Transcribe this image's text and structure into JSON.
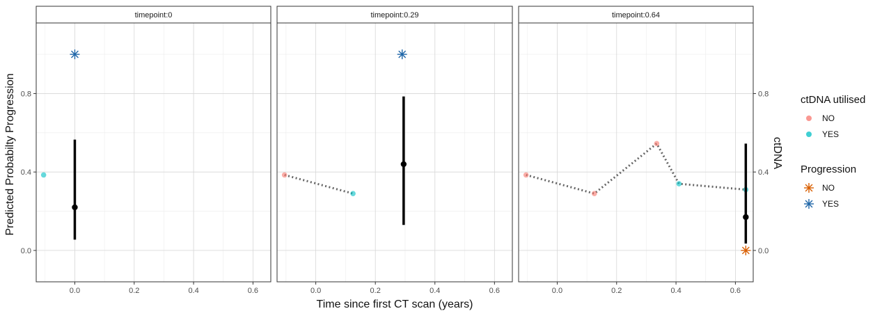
{
  "chart_data": {
    "type": "scatter",
    "xlabel": "Time since first CT scan (years)",
    "ylabel": "Predicted Probabilty Progression",
    "y2label": "ctDNA",
    "xlim": [
      -0.13,
      0.66
    ],
    "ylim": [
      -0.16,
      1.16
    ],
    "x_ticks": [
      0.0,
      0.2,
      0.4,
      0.6
    ],
    "x_tick_labels": [
      "0.0",
      "0.2",
      "0.4",
      "0.6"
    ],
    "y_ticks": [
      0.0,
      0.4,
      0.8
    ],
    "y_tick_labels": [
      "0.0",
      "0.4",
      "0.8"
    ],
    "grid": true,
    "colors": {
      "ctdna_no": "#F8766D",
      "ctdna_yes": "#00BFC4",
      "progression_no": "#D95F02",
      "progression_yes": "#1F66A8",
      "prediction": "#000000",
      "ctdna_line": "#666666"
    },
    "facets": [
      {
        "title": "timepoint:0",
        "ctdna_points": [
          {
            "x": -0.105,
            "y": 0.385,
            "utilised": "YES"
          }
        ],
        "prediction": {
          "x": 0.0,
          "y": 0.22,
          "ymin": 0.055,
          "ymax": 0.565
        },
        "progression_markers": [
          {
            "x": 0.0,
            "y": 1.0,
            "progression": "YES"
          }
        ]
      },
      {
        "title": "timepoint:0.29",
        "ctdna_points": [
          {
            "x": -0.105,
            "y": 0.385,
            "utilised": "NO"
          },
          {
            "x": 0.125,
            "y": 0.29,
            "utilised": "YES"
          }
        ],
        "prediction": {
          "x": 0.295,
          "y": 0.44,
          "ymin": 0.13,
          "ymax": 0.785
        },
        "progression_markers": [
          {
            "x": 0.29,
            "y": 1.0,
            "progression": "YES"
          }
        ]
      },
      {
        "title": "timepoint:0.64",
        "ctdna_points": [
          {
            "x": -0.105,
            "y": 0.385,
            "utilised": "NO"
          },
          {
            "x": 0.125,
            "y": 0.29,
            "utilised": "NO"
          },
          {
            "x": 0.335,
            "y": 0.545,
            "utilised": "NO"
          },
          {
            "x": 0.41,
            "y": 0.34,
            "utilised": "YES"
          },
          {
            "x": 0.635,
            "y": 0.31,
            "utilised": "YES"
          }
        ],
        "prediction": {
          "x": 0.635,
          "y": 0.17,
          "ymin": 0.035,
          "ymax": 0.545
        },
        "progression_markers": [
          {
            "x": 0.635,
            "y": 0.0,
            "progression": "NO"
          }
        ]
      }
    ],
    "legend": {
      "position": "right",
      "ctdna": {
        "title": "ctDNA utilised",
        "items": [
          "NO",
          "YES"
        ]
      },
      "progression": {
        "title": "Progression",
        "items": [
          "NO",
          "YES"
        ]
      }
    }
  }
}
